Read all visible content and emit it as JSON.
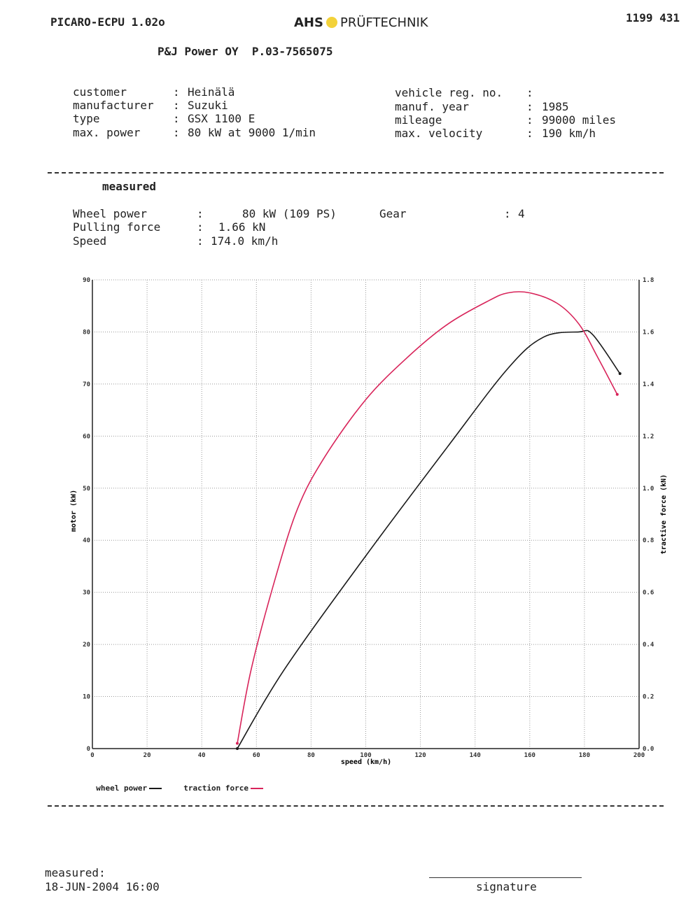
{
  "header": {
    "software": "PICARO-ECPU 1.02o",
    "brand_bold": "AHS",
    "brand_rest": "PRÜFTECHNIK",
    "sheet_no": "1199 431",
    "company": "P&J Power OY  P.03-7565075"
  },
  "vehicle": {
    "left": [
      {
        "label": "customer",
        "value": "Heinälä"
      },
      {
        "label": "manufacturer",
        "value": "Suzuki"
      },
      {
        "label": "type",
        "value": "GSX 1100 E"
      },
      {
        "label": "max. power",
        "value": "80 kW at 9000 1/min"
      }
    ],
    "right": [
      {
        "label": "vehicle reg. no.",
        "value": ""
      },
      {
        "label": "manuf. year",
        "value": "1985"
      },
      {
        "label": "mileage",
        "value": "99000 miles"
      },
      {
        "label": "max. velocity",
        "value": "190 km/h"
      }
    ]
  },
  "measured": {
    "heading": "measured",
    "wheel_power_label": "Wheel power",
    "wheel_power_value": "80 kW (109 PS)",
    "gear_label": "Gear",
    "gear_value": "4",
    "pulling_force_label": "Pulling force",
    "pulling_force_value": "1.66 kN",
    "speed_label": "Speed",
    "speed_value": "174.0 km/h"
  },
  "chart_data": {
    "type": "line",
    "xlabel": "speed (km/h)",
    "ylabel": "motor (kW)",
    "y2label": "tractive force (kN)",
    "xlim": [
      0,
      200
    ],
    "ylim": [
      0,
      90
    ],
    "y2lim": [
      0,
      1.8
    ],
    "x_ticks": [
      "0",
      "20",
      "40",
      "60",
      "80",
      "100",
      "120",
      "140",
      "160",
      "180",
      "200"
    ],
    "y_ticks": [
      "0",
      "10",
      "20",
      "30",
      "40",
      "50",
      "60",
      "70",
      "80",
      "90"
    ],
    "y2_ticks": [
      "0.0",
      "0.2",
      "0.4",
      "0.6",
      "0.8",
      "1.0",
      "1.2",
      "1.4",
      "1.6",
      "1.8"
    ],
    "grid": true,
    "series": [
      {
        "name": "wheel power",
        "axis": "left",
        "color": "#1a1a1a",
        "x": [
          53,
          70,
          100,
          130,
          152,
          165,
          178,
          183,
          193
        ],
        "y": [
          0,
          15,
          37,
          58,
          73,
          79,
          80,
          79.5,
          72
        ]
      },
      {
        "name": "traction force",
        "axis": "right",
        "color": "#d8245a",
        "x": [
          53,
          58,
          66,
          75,
          85,
          100,
          115,
          130,
          145,
          152,
          160,
          170,
          178,
          185,
          192
        ],
        "y": [
          0.02,
          0.3,
          0.62,
          0.92,
          1.12,
          1.34,
          1.5,
          1.63,
          1.72,
          1.75,
          1.75,
          1.71,
          1.63,
          1.5,
          1.36
        ]
      }
    ]
  },
  "legend": {
    "wheel_power": "wheel power",
    "traction_force": "traction force"
  },
  "footer": {
    "measured_label": "measured:",
    "measured_date": "18-JUN-2004 16:00",
    "signature_label": "signature"
  }
}
